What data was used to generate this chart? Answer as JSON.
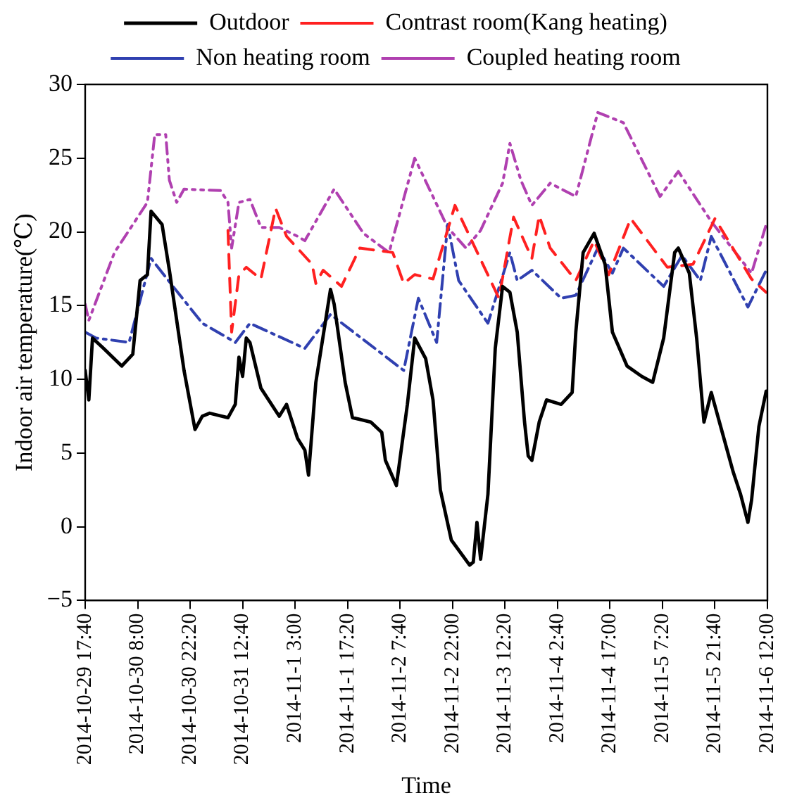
{
  "chart_data": {
    "type": "line",
    "xlabel": "Time",
    "ylabel": "Indoor air temperature(℃)",
    "xlim": [
      "2014-10-29T17:40",
      "2014-11-06T12:00"
    ],
    "xticks": [
      {
        "value": "2014-10-29T17:40",
        "label": "2014-10-29 17:40"
      },
      {
        "value": "2014-10-30T08:00",
        "label": "2014-10-30 8:00"
      },
      {
        "value": "2014-10-30T22:20",
        "label": "2014-10-30 22:20"
      },
      {
        "value": "2014-10-31T12:40",
        "label": "2014-10-31 12:40"
      },
      {
        "value": "2014-11-01T03:00",
        "label": "2014-11-1 3:00"
      },
      {
        "value": "2014-11-01T17:20",
        "label": "2014-11-1 17:20"
      },
      {
        "value": "2014-11-02T07:40",
        "label": "2014-11-2 7:40"
      },
      {
        "value": "2014-11-02T22:00",
        "label": "2014-11-2 22:00"
      },
      {
        "value": "2014-11-03T12:20",
        "label": "2014-11-3 12:20"
      },
      {
        "value": "2014-11-04T02:40",
        "label": "2014-11-4 2:40"
      },
      {
        "value": "2014-11-04T17:00",
        "label": "2014-11-4 17:00"
      },
      {
        "value": "2014-11-05T07:20",
        "label": "2014-11-5 7:20"
      },
      {
        "value": "2014-11-05T21:40",
        "label": "2014-11-5 21:40"
      },
      {
        "value": "2014-11-06T12:00",
        "label": "2014-11-6 12:00"
      }
    ],
    "ylim": [
      -5,
      30
    ],
    "yticks": [
      -5,
      0,
      5,
      10,
      15,
      20,
      25,
      30
    ],
    "grid": false,
    "legend": "top",
    "marker": "none",
    "series": [
      {
        "name": "Outdoor",
        "color": "#000000",
        "line_style": "solid",
        "x": [
          "2014-10-29T17:40",
          "2014-10-29T18:40",
          "2014-10-29T19:40",
          "2014-10-29T22:40",
          "2014-10-30T03:40",
          "2014-10-30T06:40",
          "2014-10-30T08:40",
          "2014-10-30T10:40",
          "2014-10-30T11:40",
          "2014-10-30T14:40",
          "2014-10-30T16:40",
          "2014-10-30T20:40",
          "2014-10-30T23:40",
          "2014-10-31T01:40",
          "2014-10-31T03:40",
          "2014-10-31T08:40",
          "2014-10-31T10:40",
          "2014-10-31T11:40",
          "2014-10-31T12:40",
          "2014-10-31T13:40",
          "2014-10-31T14:40",
          "2014-10-31T17:40",
          "2014-10-31T22:40",
          "2014-11-01T00:40",
          "2014-11-01T03:40",
          "2014-11-01T05:40",
          "2014-11-01T06:40",
          "2014-11-01T08:40",
          "2014-11-01T12:40",
          "2014-11-01T13:40",
          "2014-11-01T16:40",
          "2014-11-01T18:40",
          "2014-11-01T23:40",
          "2014-11-02T02:40",
          "2014-11-02T03:40",
          "2014-11-02T06:40",
          "2014-11-02T09:40",
          "2014-11-02T11:40",
          "2014-11-02T14:40",
          "2014-11-02T16:40",
          "2014-11-02T18:40",
          "2014-11-02T21:40",
          "2014-11-03T02:40",
          "2014-11-03T03:40",
          "2014-11-03T04:40",
          "2014-11-03T05:40",
          "2014-11-03T07:40",
          "2014-11-03T09:40",
          "2014-11-03T11:40",
          "2014-11-03T13:40",
          "2014-11-03T15:40",
          "2014-11-03T17:40",
          "2014-11-03T18:40",
          "2014-11-03T19:40",
          "2014-11-03T21:40",
          "2014-11-03T23:40",
          "2014-11-04T03:40",
          "2014-11-04T06:40",
          "2014-11-04T07:40",
          "2014-11-04T09:40",
          "2014-11-04T12:40",
          "2014-11-04T15:40",
          "2014-11-04T17:40",
          "2014-11-04T21:40",
          "2014-11-05T01:40",
          "2014-11-05T04:40",
          "2014-11-05T07:40",
          "2014-11-05T10:40",
          "2014-11-05T11:40",
          "2014-11-05T14:40",
          "2014-11-05T16:40",
          "2014-11-05T18:40",
          "2014-11-05T20:40",
          "2014-11-05T23:40",
          "2014-11-06T02:40",
          "2014-11-06T04:40",
          "2014-11-06T06:40",
          "2014-11-06T07:40",
          "2014-11-06T09:40",
          "2014-11-06T11:40"
        ],
        "values": [
          10.6,
          8.6,
          12.8,
          12.1,
          10.9,
          11.7,
          16.7,
          17.1,
          21.4,
          20.5,
          17.4,
          10.6,
          6.6,
          7.5,
          7.7,
          7.4,
          8.3,
          11.5,
          10.2,
          12.8,
          12.5,
          9.4,
          7.5,
          8.3,
          6.0,
          5.2,
          3.5,
          9.8,
          16.1,
          15.1,
          9.8,
          7.4,
          7.1,
          6.4,
          4.5,
          2.8,
          8.3,
          12.8,
          11.4,
          8.6,
          2.5,
          -0.9,
          -2.6,
          -2.4,
          0.3,
          -2.2,
          2.2,
          12.1,
          16.3,
          15.9,
          13.2,
          7.1,
          4.8,
          4.5,
          7.1,
          8.6,
          8.3,
          9.1,
          13.2,
          18.6,
          19.9,
          17.8,
          13.2,
          10.9,
          10.2,
          9.8,
          12.8,
          18.6,
          18.9,
          17.2,
          12.8,
          7.1,
          9.1,
          6.4,
          3.7,
          2.2,
          0.3,
          1.8,
          6.8,
          9.2
        ]
      },
      {
        "name": "Contrast room(Kang heating)",
        "color": "#ff2020",
        "line_style": "dashed",
        "x": [
          "2014-10-31T08:40",
          "2014-10-31T09:40",
          "2014-10-31T11:40",
          "2014-10-31T13:40",
          "2014-10-31T17:40",
          "2014-10-31T21:40",
          "2014-11-01T00:40",
          "2014-11-01T07:40",
          "2014-11-01T08:40",
          "2014-11-01T10:40",
          "2014-11-01T15:40",
          "2014-11-01T20:40",
          "2014-11-02T05:40",
          "2014-11-02T08:40",
          "2014-11-02T11:40",
          "2014-11-02T16:40",
          "2014-11-02T22:40",
          "2014-11-03T02:40",
          "2014-11-03T10:40",
          "2014-11-03T14:40",
          "2014-11-03T19:40",
          "2014-11-03T21:40",
          "2014-11-04T00:40",
          "2014-11-04T07:40",
          "2014-11-04T12:40",
          "2014-11-04T16:40",
          "2014-11-04T22:40",
          "2014-11-05T08:40",
          "2014-11-05T15:40",
          "2014-11-05T21:40",
          "2014-11-06T07:40",
          "2014-11-06T11:40"
        ],
        "values": [
          20.1,
          13.2,
          17.1,
          17.6,
          16.8,
          21.6,
          19.7,
          17.8,
          16.5,
          17.4,
          16.3,
          18.9,
          18.6,
          16.5,
          17.1,
          16.8,
          21.8,
          19.7,
          15.5,
          21.0,
          18.2,
          21.1,
          18.9,
          16.7,
          19.4,
          17.1,
          20.9,
          17.6,
          17.8,
          20.9,
          16.8,
          15.9
        ]
      },
      {
        "name": "Non heating room",
        "color": "#3040b0",
        "line_style": "dashdot",
        "x": [
          "2014-10-29T17:40",
          "2014-10-29T20:40",
          "2014-10-30T05:40",
          "2014-10-30T11:40",
          "2014-10-30T17:40",
          "2014-10-31T01:40",
          "2014-10-31T08:40",
          "2014-10-31T10:40",
          "2014-10-31T14:40",
          "2014-11-01T05:40",
          "2014-11-01T12:40",
          "2014-11-02T08:40",
          "2014-11-02T12:40",
          "2014-11-02T17:40",
          "2014-11-02T20:40",
          "2014-11-02T23:40",
          "2014-11-03T07:40",
          "2014-11-03T13:40",
          "2014-11-03T15:40",
          "2014-11-03T19:40",
          "2014-11-04T03:40",
          "2014-11-04T07:40",
          "2014-11-04T13:40",
          "2014-11-04T17:40",
          "2014-11-04T20:40",
          "2014-11-05T07:40",
          "2014-11-05T12:40",
          "2014-11-05T17:40",
          "2014-11-05T20:40",
          "2014-11-06T06:40",
          "2014-11-06T08:40",
          "2014-11-06T11:40"
        ],
        "values": [
          13.2,
          12.8,
          12.5,
          18.2,
          16.3,
          13.8,
          12.8,
          12.5,
          13.8,
          12.1,
          14.4,
          10.6,
          15.5,
          12.5,
          20.5,
          16.7,
          13.8,
          18.6,
          16.7,
          17.4,
          15.5,
          15.7,
          18.9,
          17.2,
          18.9,
          16.3,
          18.4,
          16.7,
          19.7,
          14.9,
          15.9,
          17.4
        ]
      },
      {
        "name": "Coupled heating room",
        "color": "#b040b0",
        "line_style": "dashdotdot",
        "x": [
          "2014-10-29T17:40",
          "2014-10-29T18:40",
          "2014-10-30T01:40",
          "2014-10-30T10:40",
          "2014-10-30T12:40",
          "2014-10-30T15:40",
          "2014-10-30T16:40",
          "2014-10-30T18:40",
          "2014-10-30T20:40",
          "2014-10-31T06:40",
          "2014-10-31T08:40",
          "2014-10-31T09:40",
          "2014-10-31T11:40",
          "2014-10-31T14:40",
          "2014-10-31T17:40",
          "2014-10-31T22:40",
          "2014-11-01T03:40",
          "2014-11-01T05:40",
          "2014-11-01T13:40",
          "2014-11-01T21:40",
          "2014-11-02T04:40",
          "2014-11-02T11:40",
          "2014-11-02T20:40",
          "2014-11-03T01:40",
          "2014-11-03T05:40",
          "2014-11-03T11:40",
          "2014-11-03T13:40",
          "2014-11-03T16:40",
          "2014-11-03T19:40",
          "2014-11-04T00:40",
          "2014-11-04T07:40",
          "2014-11-04T13:40",
          "2014-11-04T20:40",
          "2014-11-05T06:40",
          "2014-11-05T11:40",
          "2014-11-05T20:40",
          "2014-11-06T07:40",
          "2014-11-06T11:40"
        ],
        "values": [
          15.1,
          14.0,
          18.6,
          22.0,
          26.6,
          26.6,
          23.5,
          22.0,
          22.9,
          22.8,
          22.0,
          18.9,
          22.0,
          22.2,
          20.3,
          20.3,
          19.7,
          19.4,
          22.9,
          19.9,
          18.6,
          25.0,
          20.3,
          18.9,
          20.1,
          23.3,
          26.0,
          23.5,
          21.8,
          23.3,
          22.4,
          28.1,
          27.4,
          22.4,
          24.1,
          20.7,
          17.2,
          20.5
        ]
      }
    ]
  }
}
